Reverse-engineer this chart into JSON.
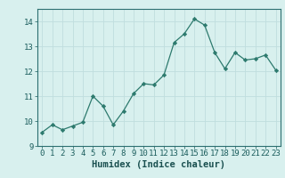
{
  "x": [
    0,
    1,
    2,
    3,
    4,
    5,
    6,
    7,
    8,
    9,
    10,
    11,
    12,
    13,
    14,
    15,
    16,
    17,
    18,
    19,
    20,
    21,
    22,
    23
  ],
  "y": [
    9.55,
    9.85,
    9.65,
    9.8,
    9.95,
    11.0,
    10.6,
    9.85,
    10.4,
    11.1,
    11.5,
    11.45,
    11.85,
    13.15,
    13.5,
    14.1,
    13.85,
    12.75,
    12.1,
    12.75,
    12.45,
    12.5,
    12.65,
    12.05
  ],
  "line_color": "#2d7a6e",
  "marker": "D",
  "marker_size": 2.2,
  "xlabel": "Humidex (Indice chaleur)",
  "xlim": [
    -0.5,
    23.5
  ],
  "ylim": [
    9.0,
    14.5
  ],
  "yticks": [
    9,
    10,
    11,
    12,
    13,
    14
  ],
  "xticks": [
    0,
    1,
    2,
    3,
    4,
    5,
    6,
    7,
    8,
    9,
    10,
    11,
    12,
    13,
    14,
    15,
    16,
    17,
    18,
    19,
    20,
    21,
    22,
    23
  ],
  "bg_color": "#d8f0ee",
  "grid_color": "#c0dede",
  "axis_color": "#2d7070",
  "tick_label_color": "#1a5c5c",
  "xlabel_color": "#1a5050",
  "xlabel_fontsize": 7.5,
  "tick_fontsize": 6.5
}
